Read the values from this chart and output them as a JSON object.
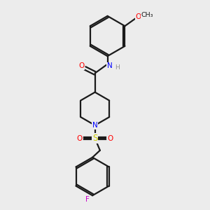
{
  "background_color": "#ececec",
  "bond_color": "#1a1a1a",
  "atom_colors": {
    "O": "#ff0000",
    "N": "#0000ff",
    "S": "#cccc00",
    "F": "#cc00cc",
    "H": "#909090"
  },
  "figsize": [
    3.0,
    3.0
  ],
  "dpi": 100
}
